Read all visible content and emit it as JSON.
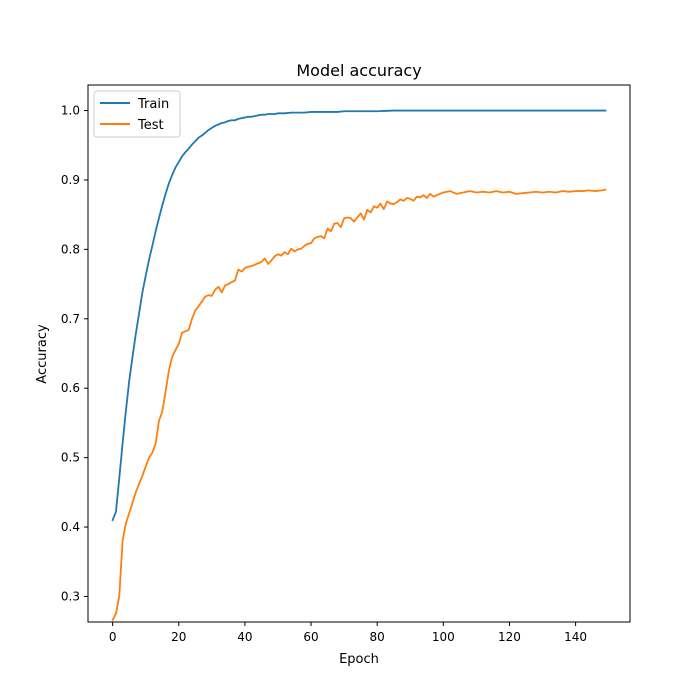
{
  "chart_data": {
    "type": "line",
    "title": "Model accuracy",
    "xlabel": "Epoch",
    "ylabel": "Accuracy",
    "xlim": [
      -7.45,
      156.45
    ],
    "ylim": [
      0.2632,
      1.0368
    ],
    "xticks": [
      0,
      20,
      40,
      60,
      80,
      100,
      120,
      140
    ],
    "yticks": [
      0.3,
      0.4,
      0.5,
      0.6,
      0.7,
      0.8,
      0.9,
      1.0
    ],
    "ytick_labels": [
      "0.3",
      "0.4",
      "0.5",
      "0.6",
      "0.7",
      "0.8",
      "0.9",
      "1.0"
    ],
    "grid": false,
    "legend_position": "upper-left",
    "series": [
      {
        "name": "Train",
        "color": "#1f77b4",
        "x": [
          0,
          1,
          2,
          3,
          4,
          5,
          6,
          7,
          8,
          9,
          10,
          11,
          12,
          13,
          14,
          15,
          16,
          17,
          18,
          19,
          20,
          21,
          22,
          23,
          24,
          25,
          26,
          27,
          28,
          29,
          30,
          31,
          32,
          33,
          34,
          35,
          36,
          37,
          38,
          39,
          40,
          41,
          42,
          43,
          44,
          45,
          46,
          47,
          48,
          49,
          50,
          52,
          54,
          56,
          58,
          60,
          62,
          64,
          66,
          68,
          70,
          72,
          74,
          76,
          78,
          80,
          85,
          90,
          95,
          100,
          105,
          110,
          115,
          120,
          125,
          130,
          135,
          140,
          145,
          149
        ],
        "y": [
          0.41,
          0.422,
          0.47,
          0.52,
          0.567,
          0.61,
          0.645,
          0.678,
          0.708,
          0.738,
          0.762,
          0.785,
          0.805,
          0.826,
          0.845,
          0.863,
          0.88,
          0.895,
          0.907,
          0.918,
          0.926,
          0.934,
          0.94,
          0.945,
          0.951,
          0.956,
          0.961,
          0.964,
          0.968,
          0.972,
          0.975,
          0.978,
          0.98,
          0.982,
          0.983,
          0.985,
          0.986,
          0.986,
          0.988,
          0.989,
          0.99,
          0.991,
          0.991,
          0.992,
          0.993,
          0.994,
          0.994,
          0.995,
          0.995,
          0.995,
          0.996,
          0.996,
          0.997,
          0.997,
          0.997,
          0.998,
          0.998,
          0.998,
          0.998,
          0.998,
          0.999,
          0.999,
          0.999,
          0.999,
          0.999,
          0.999,
          1.0,
          1.0,
          1.0,
          1.0,
          1.0,
          1.0,
          1.0,
          1.0,
          1.0,
          1.0,
          1.0,
          1.0,
          1.0,
          1.0
        ]
      },
      {
        "name": "Test",
        "color": "#ff7f0e",
        "x": [
          0,
          1,
          2,
          3,
          4,
          5,
          6,
          7,
          8,
          9,
          10,
          11,
          12,
          13,
          14,
          15,
          16,
          17,
          18,
          19,
          20,
          21,
          22,
          23,
          24,
          25,
          26,
          27,
          28,
          29,
          30,
          31,
          32,
          33,
          34,
          35,
          36,
          37,
          38,
          39,
          40,
          41,
          42,
          43,
          44,
          45,
          46,
          47,
          48,
          49,
          50,
          51,
          52,
          53,
          54,
          55,
          56,
          57,
          58,
          59,
          60,
          61,
          62,
          63,
          64,
          65,
          66,
          67,
          68,
          69,
          70,
          71,
          72,
          73,
          74,
          75,
          76,
          77,
          78,
          79,
          80,
          81,
          82,
          83,
          84,
          85,
          86,
          87,
          88,
          89,
          90,
          91,
          92,
          93,
          94,
          95,
          96,
          97,
          98,
          99,
          100,
          102,
          104,
          106,
          108,
          110,
          112,
          114,
          116,
          118,
          120,
          122,
          124,
          126,
          128,
          130,
          132,
          134,
          136,
          138,
          140,
          142,
          144,
          146,
          148,
          149
        ],
        "y": [
          0.266,
          0.275,
          0.3,
          0.38,
          0.405,
          0.42,
          0.435,
          0.45,
          0.462,
          0.474,
          0.487,
          0.5,
          0.507,
          0.52,
          0.553,
          0.566,
          0.595,
          0.625,
          0.645,
          0.655,
          0.664,
          0.68,
          0.682,
          0.684,
          0.7,
          0.712,
          0.718,
          0.725,
          0.732,
          0.734,
          0.733,
          0.742,
          0.746,
          0.738,
          0.748,
          0.75,
          0.753,
          0.755,
          0.771,
          0.768,
          0.773,
          0.775,
          0.776,
          0.778,
          0.78,
          0.782,
          0.787,
          0.779,
          0.784,
          0.79,
          0.793,
          0.791,
          0.796,
          0.793,
          0.801,
          0.797,
          0.8,
          0.801,
          0.805,
          0.808,
          0.809,
          0.816,
          0.818,
          0.819,
          0.816,
          0.83,
          0.826,
          0.837,
          0.838,
          0.832,
          0.845,
          0.846,
          0.845,
          0.84,
          0.846,
          0.852,
          0.843,
          0.857,
          0.853,
          0.862,
          0.86,
          0.866,
          0.858,
          0.869,
          0.866,
          0.865,
          0.868,
          0.872,
          0.87,
          0.874,
          0.873,
          0.87,
          0.876,
          0.875,
          0.878,
          0.874,
          0.88,
          0.876,
          0.878,
          0.88,
          0.882,
          0.884,
          0.88,
          0.882,
          0.884,
          0.882,
          0.883,
          0.882,
          0.884,
          0.882,
          0.883,
          0.88,
          0.881,
          0.882,
          0.883,
          0.882,
          0.883,
          0.882,
          0.884,
          0.883,
          0.884,
          0.884,
          0.885,
          0.884,
          0.885,
          0.886
        ]
      }
    ]
  }
}
